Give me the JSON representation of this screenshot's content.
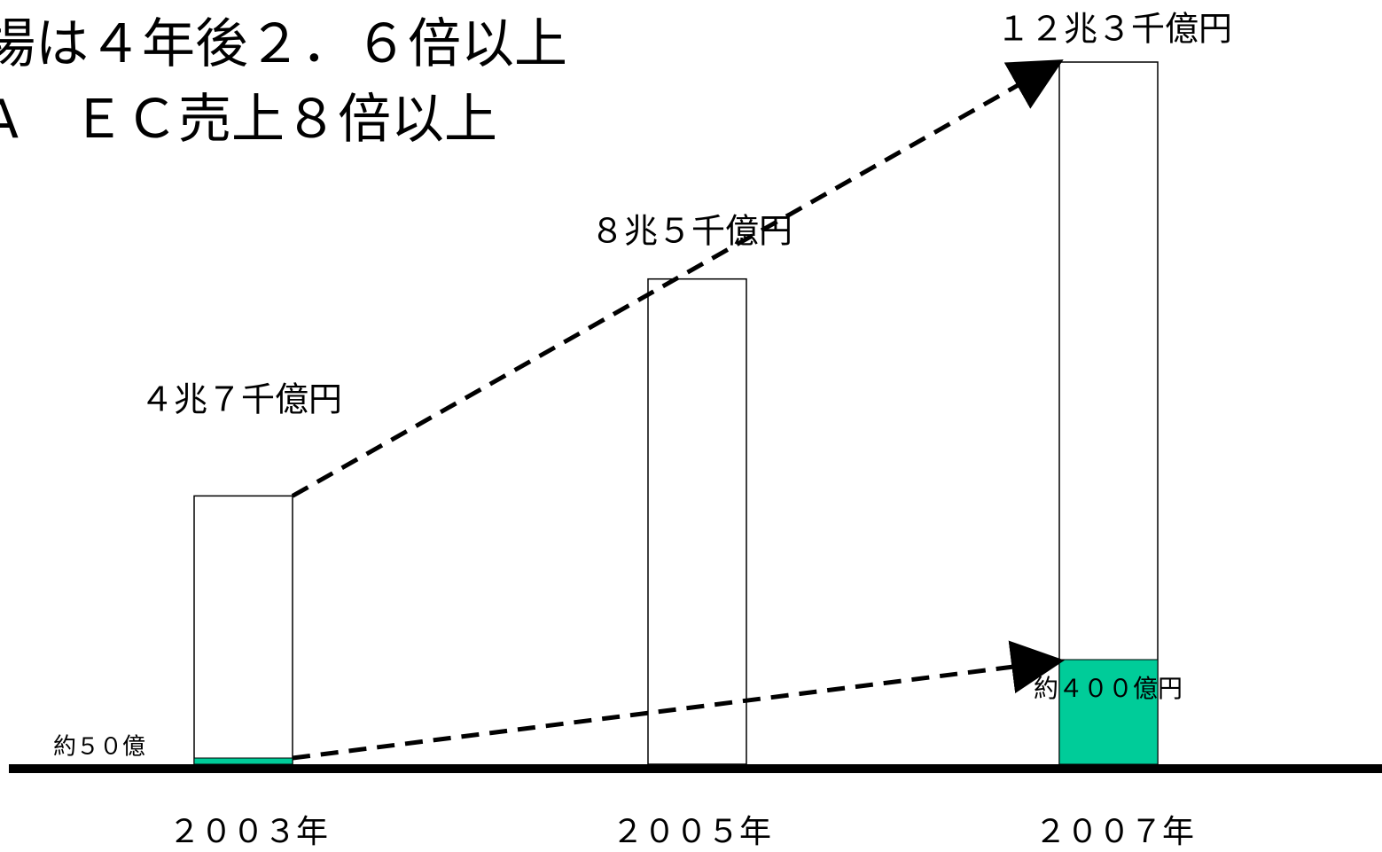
{
  "headline": {
    "line1": "場は４年後２．６倍以上",
    "line2": "A　ＥＣ売上８倍以上"
  },
  "colors": {
    "total_fill": "#ffffff",
    "ec_fill": "#00cc99",
    "outline": "#000000",
    "baseline": "#000000"
  },
  "chart_data": {
    "type": "bar",
    "categories": [
      "２００３年",
      "２００５年",
      "２００７年"
    ],
    "series": [
      {
        "values": [
          4.7,
          8.5,
          12.3
        ],
        "labels": [
          "４兆７千億円",
          "８兆５千億円",
          "１２兆３千億円"
        ]
      },
      {
        "values": [
          0.005,
          null,
          0.04
        ],
        "labels": [
          "約５０億",
          "",
          "約４００億円"
        ]
      }
    ],
    "unit_note": "兆円",
    "ylim": [
      0,
      13
    ],
    "grid": false,
    "legend": "none",
    "annotations": [
      {
        "type": "dashed-arrow",
        "from": "2003-total",
        "to": "2007-total"
      },
      {
        "type": "dashed-arrow",
        "from": "2003-ec",
        "to": "2007-ec"
      }
    ]
  }
}
